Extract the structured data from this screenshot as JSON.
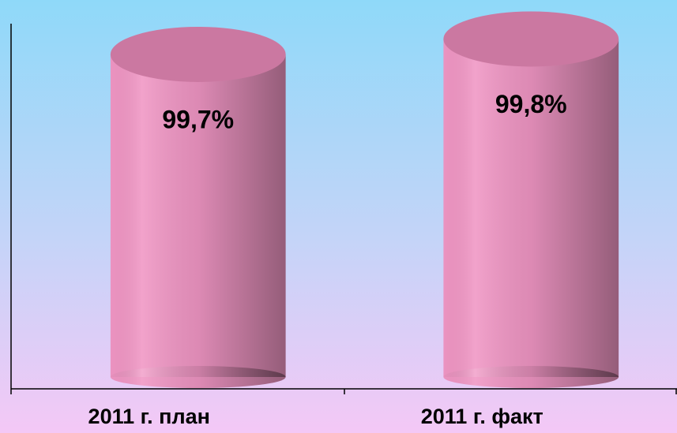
{
  "chart_data": {
    "type": "cylinder",
    "categories": [
      "2011 г. план",
      "2011 г. факт"
    ],
    "values": [
      99.7,
      99.8
    ],
    "value_labels": [
      "99,7%",
      "99,8%"
    ],
    "color": "#f096c4",
    "ylim": [
      97.6,
      99.9
    ]
  }
}
